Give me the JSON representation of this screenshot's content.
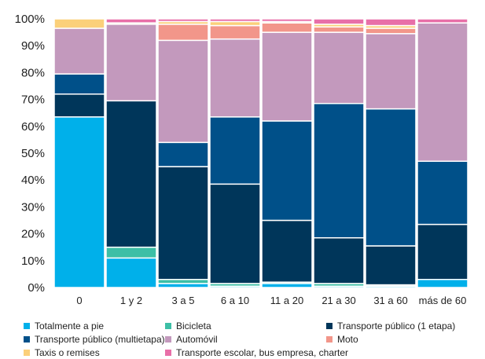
{
  "chart_data": {
    "type": "bar",
    "stacked": true,
    "percent": true,
    "categories": [
      "0",
      "1 y 2",
      "3 a 5",
      "6 a 10",
      "11 a 20",
      "21 a 30",
      "31 a 60",
      "más de 60"
    ],
    "ylim": [
      0,
      100
    ],
    "yticks": [
      "0%",
      "10%",
      "20%",
      "30%",
      "40%",
      "50%",
      "60%",
      "70%",
      "80%",
      "90%",
      "100%"
    ],
    "grid": false,
    "legend_position": "bottom",
    "series": [
      {
        "name": "Totalmente a pie",
        "color": "#00b0ea",
        "values": [
          63.5,
          11.0,
          1.5,
          0.5,
          1.5,
          0.5,
          0.5,
          3.0
        ]
      },
      {
        "name": "Bicicleta",
        "color": "#3dbfa6",
        "values": [
          0.0,
          4.0,
          1.5,
          1.0,
          0.5,
          1.0,
          0.5,
          0.0
        ]
      },
      {
        "name": "Transporte público (1 etapa)",
        "color": "#00365a",
        "values": [
          8.5,
          54.5,
          42.0,
          37.0,
          23.0,
          17.0,
          14.5,
          20.5
        ]
      },
      {
        "name": "Transporte público (multietapa)",
        "color": "#005089",
        "values": [
          7.5,
          0.0,
          9.0,
          25.0,
          37.0,
          50.0,
          51.0,
          23.5
        ]
      },
      {
        "name": "Automóvil",
        "color": "#c399bd",
        "values": [
          17.0,
          28.5,
          38.0,
          29.0,
          33.0,
          26.5,
          28.0,
          51.5
        ]
      },
      {
        "name": "Moto",
        "color": "#f2968a",
        "values": [
          0.0,
          0.0,
          6.0,
          5.0,
          3.5,
          2.0,
          2.0,
          0.0
        ]
      },
      {
        "name": "Taxis o remises",
        "color": "#fbd07a",
        "values": [
          3.5,
          0.5,
          1.0,
          1.5,
          0.5,
          1.0,
          1.0,
          0.0
        ]
      },
      {
        "name": "Transporte escolar, bus empresa, charter",
        "color": "#e86fa8",
        "values": [
          0.0,
          1.5,
          1.0,
          1.0,
          1.0,
          2.0,
          2.5,
          1.5
        ]
      }
    ]
  }
}
